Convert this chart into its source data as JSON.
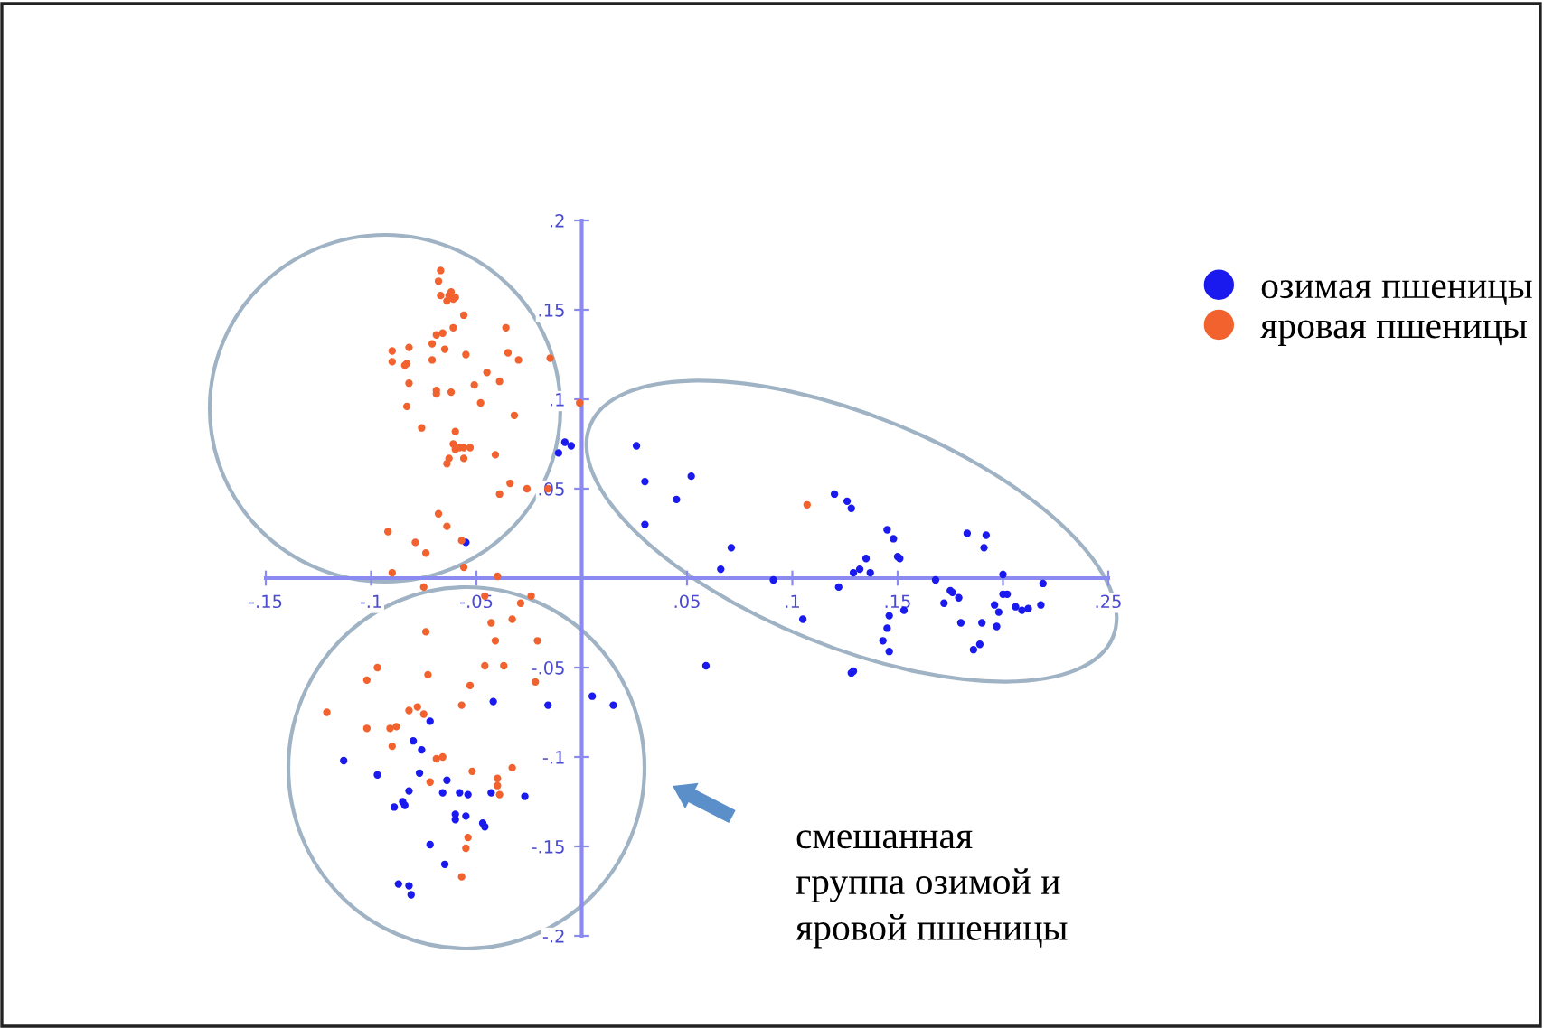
{
  "chart_data": {
    "type": "scatter",
    "xlim": [
      -0.15,
      0.25
    ],
    "ylim": [
      -0.2,
      0.2
    ],
    "xticks": [
      {
        "value": -0.15,
        "label": "-.15"
      },
      {
        "value": -0.1,
        "label": "-.1"
      },
      {
        "value": -0.05,
        "label": "-.05"
      },
      {
        "value": 0.05,
        "label": ".05"
      },
      {
        "value": 0.1,
        "label": ".1"
      },
      {
        "value": 0.15,
        "label": ".15"
      },
      {
        "value": 0.2,
        "label": null
      },
      {
        "value": 0.25,
        "label": ".25"
      }
    ],
    "yticks": [
      {
        "value": -0.2,
        "label": "-.2"
      },
      {
        "value": -0.15,
        "label": "-.15"
      },
      {
        "value": -0.1,
        "label": "-.1"
      },
      {
        "value": -0.05,
        "label": "-.05"
      },
      {
        "value": 0.05,
        "label": ".05"
      },
      {
        "value": 0.1,
        "label": ".1"
      },
      {
        "value": 0.15,
        "label": ".15"
      },
      {
        "value": 0.2,
        "label": ".2"
      }
    ],
    "grid": false,
    "legend": "right",
    "marker": "circle",
    "annotations": [
      "смешанная\nгруппа озимой и\nяровой пшеницы"
    ],
    "series": [
      {
        "name": "озимая пшеницы",
        "color": "#1a1aee",
        "x": [
          -0.055,
          -0.011,
          -0.008,
          -0.005,
          -0.042,
          -0.016,
          0.005,
          0.015,
          -0.072,
          -0.08,
          -0.076,
          -0.113,
          -0.097,
          -0.077,
          -0.064,
          -0.082,
          -0.066,
          -0.058,
          -0.054,
          -0.043,
          -0.027,
          -0.085,
          -0.089,
          -0.084,
          -0.06,
          -0.06,
          -0.055,
          -0.047,
          -0.046,
          -0.072,
          -0.065,
          -0.087,
          -0.082,
          -0.081,
          0.026,
          0.03,
          0.052,
          0.045,
          0.03,
          0.071,
          0.066,
          0.091,
          0.105,
          0.059,
          0.12,
          0.126,
          0.128,
          0.122,
          0.129,
          0.132,
          0.135,
          0.137,
          0.128,
          0.129,
          0.145,
          0.148,
          0.15,
          0.151,
          0.153,
          0.146,
          0.145,
          0.143,
          0.146,
          0.168,
          0.175,
          0.176,
          0.172,
          0.179,
          0.18,
          0.183,
          0.192,
          0.191,
          0.186,
          0.189,
          0.19,
          0.197,
          0.196,
          0.198,
          0.2,
          0.2,
          0.202,
          0.206,
          0.209,
          0.212,
          0.218,
          0.219
        ],
        "values": [
          0.02,
          0.07,
          0.076,
          0.074,
          -0.069,
          -0.071,
          -0.066,
          -0.071,
          -0.08,
          -0.091,
          -0.096,
          -0.102,
          -0.11,
          -0.109,
          -0.113,
          -0.119,
          -0.12,
          -0.12,
          -0.121,
          -0.12,
          -0.122,
          -0.125,
          -0.128,
          -0.127,
          -0.132,
          -0.135,
          -0.133,
          -0.137,
          -0.139,
          -0.149,
          -0.16,
          -0.171,
          -0.172,
          -0.177,
          0.074,
          0.054,
          0.057,
          0.044,
          0.03,
          0.017,
          0.005,
          -0.001,
          -0.023,
          -0.049,
          0.047,
          0.043,
          0.039,
          -0.005,
          0.003,
          0.005,
          0.011,
          0.003,
          -0.053,
          -0.052,
          0.027,
          0.022,
          0.012,
          0.011,
          -0.018,
          -0.021,
          -0.028,
          -0.035,
          -0.041,
          -0.001,
          -0.007,
          -0.008,
          -0.014,
          -0.011,
          -0.025,
          0.025,
          0.024,
          0.017,
          -0.04,
          -0.037,
          -0.025,
          -0.027,
          -0.015,
          -0.019,
          0.002,
          -0.009,
          -0.009,
          -0.016,
          -0.018,
          -0.017,
          -0.015,
          -0.003
        ]
      },
      {
        "name": "яровая пшеницы",
        "color": "#f2622e",
        "x": [
          -0.067,
          -0.068,
          -0.067,
          -0.063,
          -0.062,
          -0.061,
          -0.064,
          -0.06,
          -0.056,
          -0.036,
          -0.061,
          -0.066,
          -0.069,
          -0.071,
          -0.065,
          -0.09,
          -0.082,
          -0.09,
          -0.083,
          -0.084,
          -0.071,
          -0.055,
          -0.035,
          -0.03,
          -0.015,
          -0.045,
          -0.039,
          -0.051,
          -0.082,
          -0.069,
          -0.069,
          -0.062,
          -0.048,
          -0.083,
          -0.032,
          -0.001,
          -0.076,
          -0.06,
          -0.061,
          -0.058,
          -0.056,
          -0.053,
          -0.06,
          -0.063,
          -0.064,
          -0.056,
          -0.041,
          -0.034,
          -0.039,
          -0.026,
          -0.016,
          -0.068,
          -0.064,
          -0.092,
          -0.079,
          -0.074,
          -0.057,
          -0.09,
          -0.075,
          -0.056,
          -0.04,
          -0.046,
          -0.024,
          -0.029,
          -0.043,
          -0.033,
          -0.074,
          -0.041,
          -0.021,
          -0.097,
          -0.102,
          -0.073,
          -0.046,
          -0.037,
          -0.053,
          -0.022,
          -0.057,
          -0.078,
          -0.082,
          -0.075,
          -0.121,
          -0.102,
          -0.091,
          -0.088,
          -0.09,
          -0.066,
          -0.069,
          -0.033,
          -0.052,
          -0.072,
          -0.04,
          -0.04,
          -0.039,
          -0.054,
          -0.055,
          -0.057,
          0.107
        ],
        "values": [
          0.172,
          0.166,
          0.158,
          0.158,
          0.16,
          0.156,
          0.155,
          0.157,
          0.147,
          0.14,
          0.14,
          0.137,
          0.136,
          0.131,
          0.128,
          0.127,
          0.129,
          0.121,
          0.12,
          0.119,
          0.122,
          0.125,
          0.126,
          0.122,
          0.123,
          0.115,
          0.11,
          0.108,
          0.109,
          0.105,
          0.103,
          0.104,
          0.098,
          0.096,
          0.091,
          0.098,
          0.084,
          0.082,
          0.075,
          0.073,
          0.073,
          0.073,
          0.072,
          0.067,
          0.064,
          0.067,
          0.069,
          0.053,
          0.047,
          0.05,
          0.05,
          0.036,
          0.029,
          0.026,
          0.02,
          0.014,
          0.021,
          0.003,
          -0.005,
          0.006,
          0.001,
          -0.01,
          -0.01,
          -0.014,
          -0.025,
          -0.023,
          -0.03,
          -0.035,
          -0.035,
          -0.05,
          -0.057,
          -0.054,
          -0.049,
          -0.049,
          -0.06,
          -0.058,
          -0.071,
          -0.072,
          -0.074,
          -0.076,
          -0.075,
          -0.084,
          -0.084,
          -0.083,
          -0.094,
          -0.1,
          -0.101,
          -0.106,
          -0.108,
          -0.114,
          -0.112,
          -0.116,
          -0.121,
          -0.145,
          -0.151,
          -0.167,
          0.041
        ]
      }
    ]
  }
}
